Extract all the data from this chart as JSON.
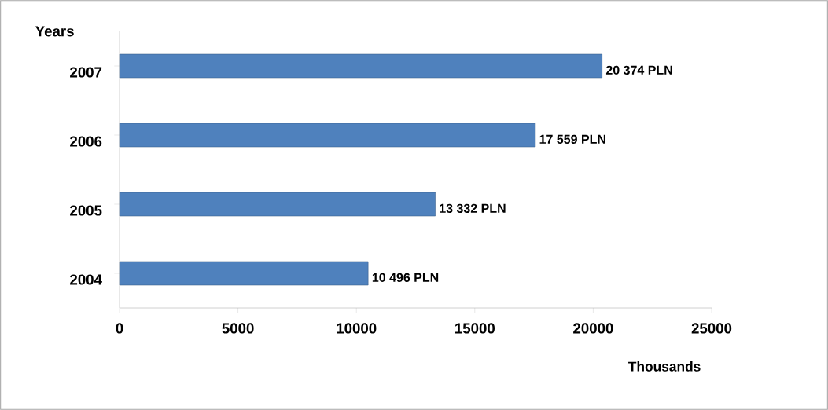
{
  "chart_data": {
    "type": "bar",
    "orientation": "horizontal",
    "categories": [
      "2007",
      "2006",
      "2005",
      "2004"
    ],
    "values": [
      20374,
      17559,
      13332,
      10496
    ],
    "value_labels": [
      "20 374 PLN",
      "17 559 PLN",
      "13 332 PLN",
      "10 496 PLN"
    ],
    "color": "#4f81bd",
    "xlim": [
      0,
      25000
    ],
    "xticks": [
      0,
      5000,
      10000,
      15000,
      20000,
      25000
    ],
    "xlabel": "Thousands",
    "ylabel": "Years"
  }
}
